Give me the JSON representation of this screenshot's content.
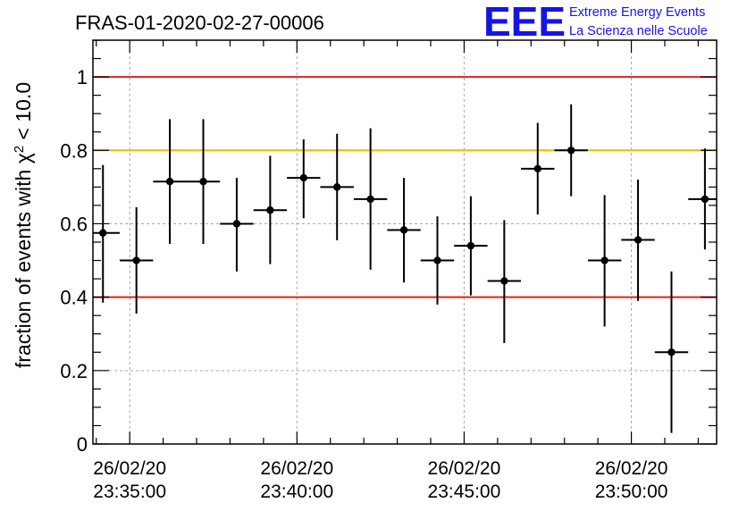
{
  "title": "FRAS-01-2020-02-27-00006",
  "logo": {
    "mark": "EEE",
    "line1": "Extreme Energy Events",
    "line2": "La Scienza nelle Scuole",
    "color": "#1515e6"
  },
  "chart_data": {
    "type": "scatter",
    "title": "FRAS-01-2020-02-27-00006",
    "ylabel_prefix": "fraction of events with ",
    "ylabel_symbol": "χ",
    "ylabel_sup": "2",
    "ylabel_suffix": " < 10.0",
    "xlabel": "",
    "ylim": [
      0,
      1.1
    ],
    "xlim_minutes": [
      33.9,
      52.55
    ],
    "grid": true,
    "x_ticks": [
      {
        "minute": 35,
        "date": "26/02/20",
        "time": "23:35:00"
      },
      {
        "minute": 40,
        "date": "26/02/20",
        "time": "23:40:00"
      },
      {
        "minute": 45,
        "date": "26/02/20",
        "time": "23:45:00"
      },
      {
        "minute": 50,
        "date": "26/02/20",
        "time": "23:50:00"
      }
    ],
    "y_ticks": [
      {
        "value": 0,
        "label": "0"
      },
      {
        "value": 0.2,
        "label": "0.2"
      },
      {
        "value": 0.4,
        "label": "0.4"
      },
      {
        "value": 0.6,
        "label": "0.6"
      },
      {
        "value": 0.8,
        "label": "0.8"
      },
      {
        "value": 1.0,
        "label": "1"
      }
    ],
    "reference_lines": [
      {
        "y": 1.0,
        "color": "#e02020"
      },
      {
        "y": 0.8,
        "color": "#f5b800"
      },
      {
        "y": 0.4,
        "color": "#e02020"
      }
    ],
    "bin_half_width_minutes": 0.5,
    "points": [
      {
        "x": 34.2,
        "y": 0.575,
        "lo": 0.385,
        "hi": 0.76
      },
      {
        "x": 35.2,
        "y": 0.5,
        "lo": 0.355,
        "hi": 0.645
      },
      {
        "x": 36.2,
        "y": 0.715,
        "lo": 0.545,
        "hi": 0.885
      },
      {
        "x": 37.2,
        "y": 0.715,
        "lo": 0.545,
        "hi": 0.885
      },
      {
        "x": 38.2,
        "y": 0.6,
        "lo": 0.47,
        "hi": 0.725
      },
      {
        "x": 39.2,
        "y": 0.637,
        "lo": 0.49,
        "hi": 0.785
      },
      {
        "x": 40.2,
        "y": 0.725,
        "lo": 0.615,
        "hi": 0.83
      },
      {
        "x": 41.2,
        "y": 0.7,
        "lo": 0.555,
        "hi": 0.845
      },
      {
        "x": 42.2,
        "y": 0.667,
        "lo": 0.475,
        "hi": 0.86
      },
      {
        "x": 43.2,
        "y": 0.583,
        "lo": 0.44,
        "hi": 0.725
      },
      {
        "x": 44.2,
        "y": 0.5,
        "lo": 0.38,
        "hi": 0.62
      },
      {
        "x": 45.2,
        "y": 0.54,
        "lo": 0.405,
        "hi": 0.675
      },
      {
        "x": 46.2,
        "y": 0.444,
        "lo": 0.275,
        "hi": 0.61
      },
      {
        "x": 47.2,
        "y": 0.75,
        "lo": 0.625,
        "hi": 0.875
      },
      {
        "x": 48.2,
        "y": 0.8,
        "lo": 0.675,
        "hi": 0.925
      },
      {
        "x": 49.2,
        "y": 0.5,
        "lo": 0.32,
        "hi": 0.678
      },
      {
        "x": 50.2,
        "y": 0.556,
        "lo": 0.39,
        "hi": 0.72
      },
      {
        "x": 51.2,
        "y": 0.25,
        "lo": 0.03,
        "hi": 0.47
      },
      {
        "x": 52.2,
        "y": 0.667,
        "lo": 0.53,
        "hi": 0.805
      }
    ]
  }
}
